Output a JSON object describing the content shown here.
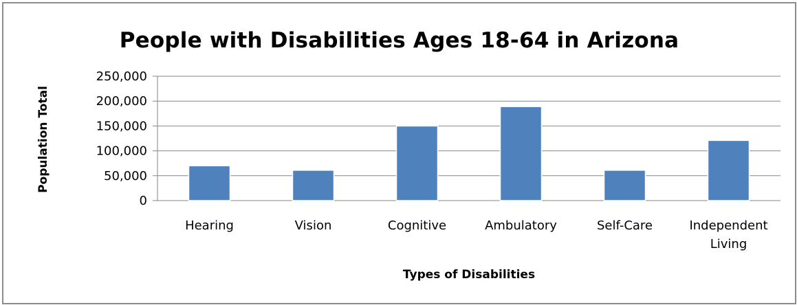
{
  "chart_data": {
    "type": "bar",
    "title": "People with Disabilities Ages 18-64 in Arizona",
    "xlabel": "Types of Disabilities",
    "ylabel": "Population Total",
    "categories": [
      [
        "Hearing"
      ],
      [
        "Vision"
      ],
      [
        "Cognitive"
      ],
      [
        "Ambulatory"
      ],
      [
        "Self-Care"
      ],
      [
        "Independent",
        "Living"
      ]
    ],
    "values": [
      70000,
      61000,
      150000,
      189000,
      61000,
      121000
    ],
    "ylim": [
      0,
      250000
    ],
    "yticks": [
      0,
      50000,
      100000,
      150000,
      200000,
      250000
    ],
    "ytick_labels": [
      "0",
      "50,000",
      "100,000",
      "150,000",
      "200,000",
      "250,000"
    ],
    "grid": true,
    "legend": "none",
    "colors": {
      "bar": "#4f81bd",
      "bar_edge": "#ffffff",
      "grid": "#868686"
    }
  }
}
